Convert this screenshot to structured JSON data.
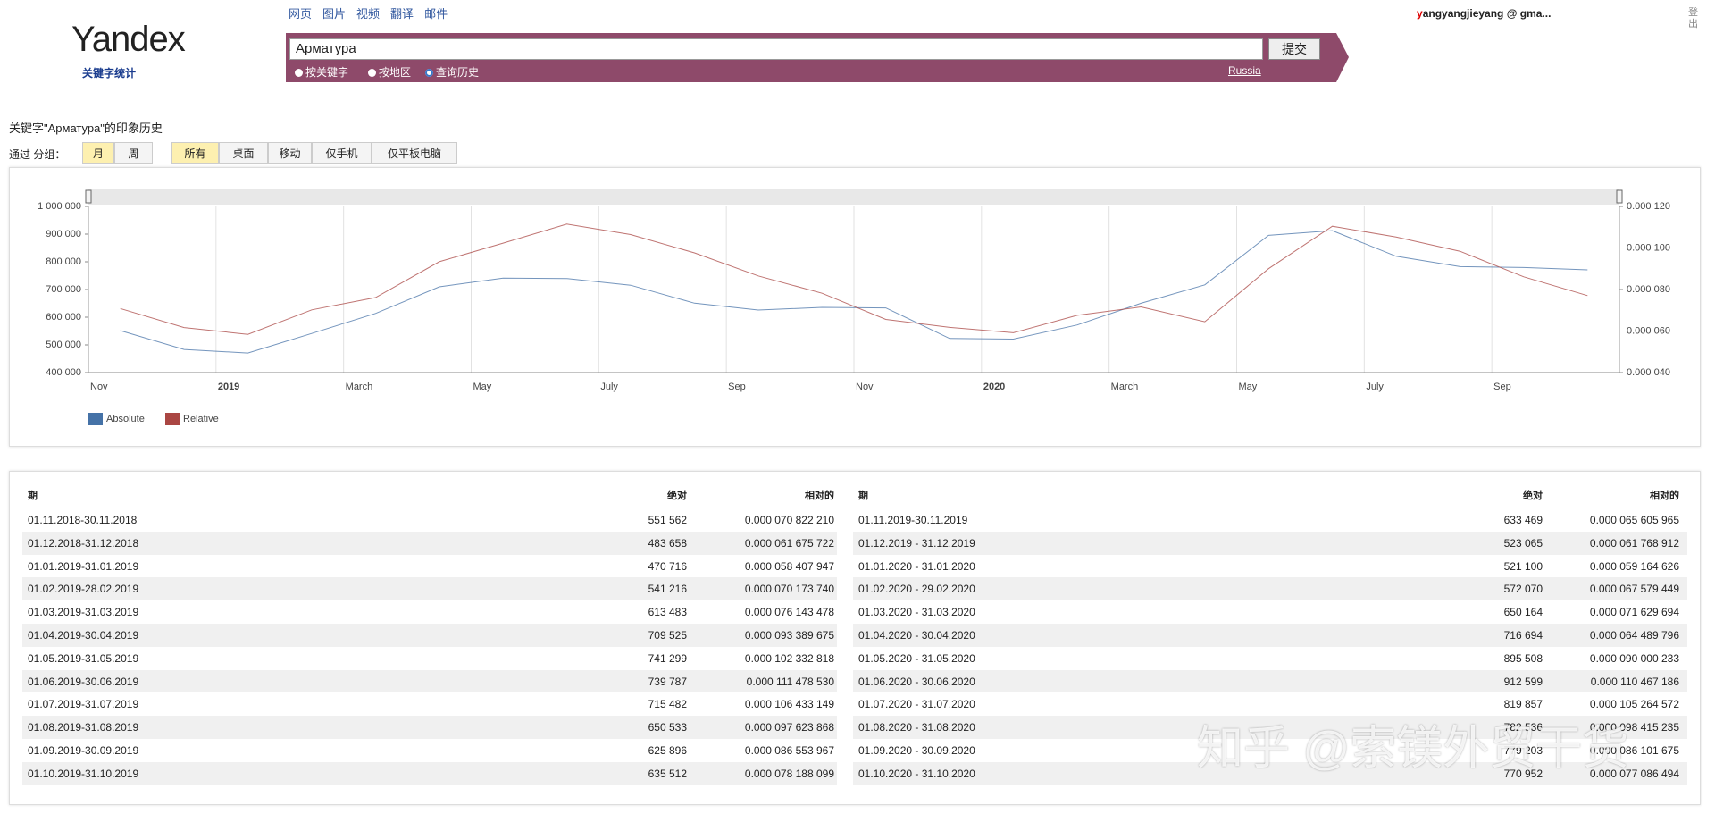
{
  "header": {
    "logo": "Yandex",
    "logo_sub": "关键字统计",
    "nav": [
      "网页",
      "图片",
      "视频",
      "翻译",
      "邮件"
    ],
    "search_query": "Арматура",
    "submit": "提交",
    "modes": [
      "按关键字",
      "按地区",
      "查询历史"
    ],
    "region": "Russia",
    "user": "yangyangjieyang @ gma...",
    "logout": "登出"
  },
  "heading": "关键字\"Арматура\"的印象历史",
  "filters": {
    "label": "通过 分组：",
    "period": [
      "月",
      "周"
    ],
    "devices": [
      "所有",
      "桌面",
      "移动",
      "仅手机",
      "仅平板电脑"
    ]
  },
  "chart_data": {
    "type": "line",
    "categories": [
      "Nov",
      null,
      "2019",
      null,
      "March",
      null,
      "May",
      null,
      "July",
      null,
      "Sep",
      null,
      "Nov",
      null,
      "2020",
      null,
      "March",
      null,
      "May",
      null,
      "July",
      null,
      "Sep",
      null
    ],
    "series": [
      {
        "name": "Absolute",
        "color": "#4572a7",
        "values": [
          551562,
          483658,
          470716,
          541216,
          613483,
          709525,
          741299,
          739787,
          715482,
          650533,
          625896,
          635512,
          633469,
          523065,
          521100,
          572070,
          650164,
          716694,
          895508,
          912599,
          819857,
          782536,
          779203,
          770952
        ]
      },
      {
        "name": "Relative",
        "color": "#aa4643",
        "axis": "y2",
        "values": [
          7.082221e-05,
          6.1675722e-05,
          5.8407947e-05,
          7.017374e-05,
          7.6143478e-05,
          9.3389675e-05,
          0.000102332818,
          0.00011147853,
          0.000106433149,
          9.7623868e-05,
          8.6553967e-05,
          7.8188099e-05,
          6.5605965e-05,
          6.1768912e-05,
          5.9164626e-05,
          6.7579449e-05,
          7.1629694e-05,
          6.4489796e-05,
          9.0000233e-05,
          0.000110467186,
          0.000105264572,
          9.8415235e-05,
          8.6101675e-05,
          7.7086494e-05
        ]
      }
    ],
    "ylim": [
      400000,
      1000000
    ],
    "yticks": [
      {
        "value": 400000,
        "label": "400 000"
      },
      {
        "value": 500000,
        "label": "500 000"
      },
      {
        "value": 600000,
        "label": "600 000"
      },
      {
        "value": 700000,
        "label": "700 000"
      },
      {
        "value": 800000,
        "label": "800 000"
      },
      {
        "value": 900000,
        "label": "900 000"
      },
      {
        "value": 1000000,
        "label": "1 000 000"
      }
    ],
    "y2lim": [
      4e-05,
      0.00012
    ],
    "y2ticks": [
      {
        "value": 4e-05,
        "label": "0.000 040"
      },
      {
        "value": 6e-05,
        "label": "0.000 060"
      },
      {
        "value": 8e-05,
        "label": "0.000 080"
      },
      {
        "value": 0.0001,
        "label": "0.000 100"
      },
      {
        "value": 0.00012,
        "label": "0.000 120"
      }
    ],
    "grid": true
  },
  "tables": [
    {
      "columns": [
        "期",
        "绝对",
        "相对的"
      ],
      "rows": [
        [
          "01.11.2018-30.11.2018",
          "551 562",
          "0.000 070 822 210"
        ],
        [
          "01.12.2018-31.12.2018",
          "483 658",
          "0.000 061 675 722"
        ],
        [
          "01.01.2019-31.01.2019",
          "470 716",
          "0.000 058 407 947"
        ],
        [
          "01.02.2019-28.02.2019",
          "541 216",
          "0.000 070 173 740"
        ],
        [
          "01.03.2019-31.03.2019",
          "613 483",
          "0.000 076 143 478"
        ],
        [
          "01.04.2019-30.04.2019",
          "709 525",
          "0.000 093 389 675"
        ],
        [
          "01.05.2019-31.05.2019",
          "741 299",
          "0.000 102 332 818"
        ],
        [
          "01.06.2019-30.06.2019",
          "739 787",
          "0.000 111 478 530"
        ],
        [
          "01.07.2019-31.07.2019",
          "715 482",
          "0.000 106 433 149"
        ],
        [
          "01.08.2019-31.08.2019",
          "650 533",
          "0.000 097 623 868"
        ],
        [
          "01.09.2019-30.09.2019",
          "625 896",
          "0.000 086 553 967"
        ],
        [
          "01.10.2019-31.10.2019",
          "635 512",
          "0.000 078 188 099"
        ]
      ]
    },
    {
      "columns": [
        "期",
        "绝对",
        "相对的"
      ],
      "rows": [
        [
          "01.11.2019-30.11.2019",
          "633 469",
          "0.000 065 605 965"
        ],
        [
          "01.12.2019 - 31.12.2019",
          "523 065",
          "0.000 061 768 912"
        ],
        [
          "01.01.2020 - 31.01.2020",
          "521 100",
          "0.000 059 164 626"
        ],
        [
          "01.02.2020 - 29.02.2020",
          "572 070",
          "0.000 067 579 449"
        ],
        [
          "01.03.2020 - 31.03.2020",
          "650 164",
          "0.000 071 629 694"
        ],
        [
          "01.04.2020 - 30.04.2020",
          "716 694",
          "0.000 064 489 796"
        ],
        [
          "01.05.2020 - 31.05.2020",
          "895 508",
          "0.000 090 000 233"
        ],
        [
          "01.06.2020 - 30.06.2020",
          "912 599",
          "0.000 110 467 186"
        ],
        [
          "01.07.2020 - 31.07.2020",
          "819 857",
          "0.000 105 264 572"
        ],
        [
          "01.08.2020 - 31.08.2020",
          "782 536",
          "0.000 098 415 235"
        ],
        [
          "01.09.2020 - 30.09.2020",
          "779 203",
          "0.000 086 101 675"
        ],
        [
          "01.10.2020 - 31.10.2020",
          "770 952",
          "0.000 077 086 494"
        ]
      ]
    }
  ],
  "watermark": "知乎 @索镁外贸干货"
}
